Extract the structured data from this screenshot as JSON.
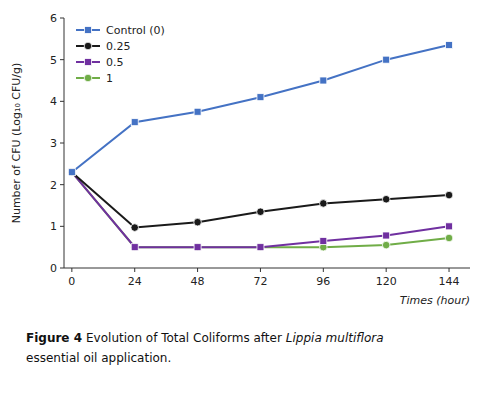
{
  "chart_data": {
    "type": "line",
    "x": [
      0,
      24,
      48,
      72,
      96,
      120,
      144
    ],
    "series": [
      {
        "name": "Control (0)",
        "color": "#4472C4",
        "marker": "square",
        "values": [
          2.3,
          3.5,
          3.75,
          4.1,
          4.5,
          5.0,
          5.35
        ]
      },
      {
        "name": "0.25",
        "color": "#1A1A1A",
        "marker": "circle",
        "values": [
          2.3,
          0.97,
          1.1,
          1.35,
          1.55,
          1.65,
          1.75
        ]
      },
      {
        "name": "0.5",
        "color": "#7030A0",
        "marker": "square",
        "values": [
          2.3,
          0.5,
          0.5,
          0.5,
          0.65,
          0.78,
          1.0
        ]
      },
      {
        "name": "1",
        "color": "#70AD47",
        "marker": "circle",
        "values": [
          2.3,
          0.5,
          0.5,
          0.5,
          0.5,
          0.55,
          0.72
        ]
      }
    ],
    "y_label": "Number of CFU (Log₁₀ CFU/g)",
    "x_label": "Times (hour)",
    "xlim": [
      -3,
      152
    ],
    "ylim": [
      0,
      6
    ],
    "xticks": [
      0,
      24,
      48,
      72,
      96,
      120,
      144
    ],
    "yticks": [
      0,
      1,
      2,
      3,
      4,
      5,
      6
    ],
    "grid": false,
    "legend": "upper left",
    "caption": [
      "Figure 4",
      "Evolution of Total Coliforms after",
      "Lippia multiflora",
      "essential oil application."
    ]
  }
}
